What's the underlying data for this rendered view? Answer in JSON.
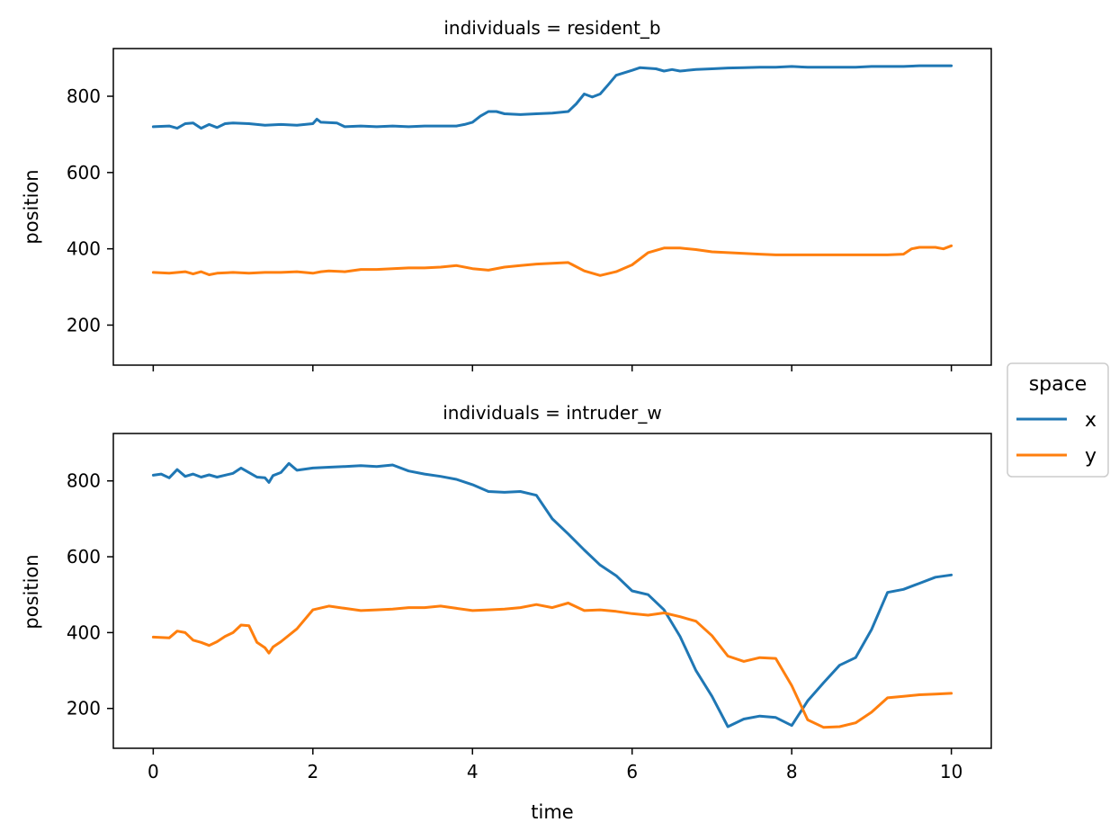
{
  "chart_data": {
    "type": "line",
    "xlabel": "time",
    "ylabel": "position",
    "xlim": [
      -0.5,
      10.5
    ],
    "ylim": [
      95,
      925
    ],
    "xticks": [
      0,
      2,
      4,
      6,
      8,
      10
    ],
    "yticks": [
      200,
      400,
      600,
      800
    ],
    "grid": false,
    "sharex": true,
    "legend": {
      "title": "space",
      "placement": "right-center-outside",
      "entries": [
        {
          "name": "x",
          "color": "#1f77b4"
        },
        {
          "name": "y",
          "color": "#ff7f0e"
        }
      ]
    },
    "panels": [
      {
        "title": "individuals = resident_b",
        "series": [
          {
            "name": "x",
            "color": "#1f77b4",
            "points": [
              [
                0,
                720
              ],
              [
                0.2,
                722
              ],
              [
                0.3,
                716
              ],
              [
                0.4,
                728
              ],
              [
                0.5,
                730
              ],
              [
                0.6,
                716
              ],
              [
                0.7,
                726
              ],
              [
                0.8,
                718
              ],
              [
                0.9,
                728
              ],
              [
                1.0,
                730
              ],
              [
                1.2,
                728
              ],
              [
                1.4,
                724
              ],
              [
                1.6,
                726
              ],
              [
                1.8,
                724
              ],
              [
                2.0,
                728
              ],
              [
                2.05,
                740
              ],
              [
                2.1,
                732
              ],
              [
                2.3,
                730
              ],
              [
                2.4,
                720
              ],
              [
                2.6,
                722
              ],
              [
                2.8,
                720
              ],
              [
                3.0,
                722
              ],
              [
                3.2,
                720
              ],
              [
                3.4,
                722
              ],
              [
                3.6,
                722
              ],
              [
                3.8,
                722
              ],
              [
                3.9,
                726
              ],
              [
                4.0,
                732
              ],
              [
                4.1,
                748
              ],
              [
                4.2,
                760
              ],
              [
                4.3,
                760
              ],
              [
                4.4,
                754
              ],
              [
                4.6,
                752
              ],
              [
                4.8,
                754
              ],
              [
                5.0,
                756
              ],
              [
                5.2,
                760
              ],
              [
                5.3,
                780
              ],
              [
                5.4,
                806
              ],
              [
                5.5,
                798
              ],
              [
                5.6,
                806
              ],
              [
                5.7,
                830
              ],
              [
                5.8,
                855
              ],
              [
                6.0,
                868
              ],
              [
                6.1,
                875
              ],
              [
                6.3,
                872
              ],
              [
                6.4,
                866
              ],
              [
                6.5,
                870
              ],
              [
                6.6,
                866
              ],
              [
                6.8,
                870
              ],
              [
                7.0,
                872
              ],
              [
                7.2,
                874
              ],
              [
                7.4,
                875
              ],
              [
                7.6,
                876
              ],
              [
                7.8,
                876
              ],
              [
                8.0,
                878
              ],
              [
                8.2,
                876
              ],
              [
                8.4,
                876
              ],
              [
                8.6,
                876
              ],
              [
                8.8,
                876
              ],
              [
                9.0,
                878
              ],
              [
                9.2,
                878
              ],
              [
                9.4,
                878
              ],
              [
                9.6,
                880
              ],
              [
                9.8,
                880
              ],
              [
                10.0,
                880
              ]
            ]
          },
          {
            "name": "y",
            "color": "#ff7f0e",
            "points": [
              [
                0,
                338
              ],
              [
                0.2,
                336
              ],
              [
                0.4,
                340
              ],
              [
                0.5,
                334
              ],
              [
                0.6,
                340
              ],
              [
                0.7,
                332
              ],
              [
                0.8,
                336
              ],
              [
                1.0,
                338
              ],
              [
                1.2,
                336
              ],
              [
                1.4,
                338
              ],
              [
                1.6,
                338
              ],
              [
                1.8,
                340
              ],
              [
                2.0,
                336
              ],
              [
                2.1,
                340
              ],
              [
                2.2,
                342
              ],
              [
                2.4,
                340
              ],
              [
                2.6,
                346
              ],
              [
                2.8,
                346
              ],
              [
                3.0,
                348
              ],
              [
                3.2,
                350
              ],
              [
                3.4,
                350
              ],
              [
                3.6,
                352
              ],
              [
                3.8,
                356
              ],
              [
                4.0,
                348
              ],
              [
                4.2,
                344
              ],
              [
                4.4,
                352
              ],
              [
                4.6,
                356
              ],
              [
                4.8,
                360
              ],
              [
                5.0,
                362
              ],
              [
                5.2,
                364
              ],
              [
                5.4,
                342
              ],
              [
                5.6,
                330
              ],
              [
                5.8,
                340
              ],
              [
                6.0,
                358
              ],
              [
                6.2,
                390
              ],
              [
                6.4,
                402
              ],
              [
                6.6,
                402
              ],
              [
                6.8,
                398
              ],
              [
                7.0,
                392
              ],
              [
                7.2,
                390
              ],
              [
                7.4,
                388
              ],
              [
                7.6,
                386
              ],
              [
                7.8,
                384
              ],
              [
                8.0,
                384
              ],
              [
                8.2,
                384
              ],
              [
                8.4,
                384
              ],
              [
                8.6,
                384
              ],
              [
                8.8,
                384
              ],
              [
                9.0,
                384
              ],
              [
                9.2,
                384
              ],
              [
                9.4,
                386
              ],
              [
                9.5,
                400
              ],
              [
                9.6,
                404
              ],
              [
                9.8,
                404
              ],
              [
                9.9,
                400
              ],
              [
                10.0,
                408
              ]
            ]
          }
        ]
      },
      {
        "title": "individuals = intruder_w",
        "series": [
          {
            "name": "x",
            "color": "#1f77b4",
            "points": [
              [
                0,
                815
              ],
              [
                0.1,
                818
              ],
              [
                0.2,
                808
              ],
              [
                0.3,
                830
              ],
              [
                0.4,
                812
              ],
              [
                0.5,
                818
              ],
              [
                0.6,
                810
              ],
              [
                0.7,
                816
              ],
              [
                0.8,
                810
              ],
              [
                1.0,
                820
              ],
              [
                1.1,
                834
              ],
              [
                1.2,
                822
              ],
              [
                1.3,
                810
              ],
              [
                1.4,
                808
              ],
              [
                1.45,
                796
              ],
              [
                1.5,
                814
              ],
              [
                1.6,
                822
              ],
              [
                1.7,
                846
              ],
              [
                1.8,
                828
              ],
              [
                2.0,
                834
              ],
              [
                2.2,
                836
              ],
              [
                2.4,
                838
              ],
              [
                2.6,
                840
              ],
              [
                2.8,
                838
              ],
              [
                3.0,
                842
              ],
              [
                3.2,
                826
              ],
              [
                3.4,
                818
              ],
              [
                3.6,
                812
              ],
              [
                3.8,
                804
              ],
              [
                4.0,
                790
              ],
              [
                4.2,
                772
              ],
              [
                4.4,
                770
              ],
              [
                4.6,
                772
              ],
              [
                4.8,
                762
              ],
              [
                5.0,
                700
              ],
              [
                5.2,
                660
              ],
              [
                5.4,
                618
              ],
              [
                5.6,
                578
              ],
              [
                5.8,
                550
              ],
              [
                6.0,
                510
              ],
              [
                6.2,
                500
              ],
              [
                6.4,
                460
              ],
              [
                6.6,
                390
              ],
              [
                6.8,
                300
              ],
              [
                7.0,
                232
              ],
              [
                7.2,
                152
              ],
              [
                7.4,
                172
              ],
              [
                7.6,
                180
              ],
              [
                7.8,
                176
              ],
              [
                8.0,
                155
              ],
              [
                8.2,
                220
              ],
              [
                8.4,
                268
              ],
              [
                8.6,
                314
              ],
              [
                8.8,
                334
              ],
              [
                9.0,
                408
              ],
              [
                9.2,
                506
              ],
              [
                9.4,
                514
              ],
              [
                9.6,
                530
              ],
              [
                9.8,
                546
              ],
              [
                10.0,
                552
              ]
            ]
          },
          {
            "name": "y",
            "color": "#ff7f0e",
            "points": [
              [
                0,
                388
              ],
              [
                0.2,
                386
              ],
              [
                0.3,
                404
              ],
              [
                0.4,
                400
              ],
              [
                0.5,
                380
              ],
              [
                0.6,
                374
              ],
              [
                0.7,
                366
              ],
              [
                0.8,
                376
              ],
              [
                0.9,
                390
              ],
              [
                1.0,
                400
              ],
              [
                1.1,
                420
              ],
              [
                1.2,
                418
              ],
              [
                1.3,
                374
              ],
              [
                1.4,
                360
              ],
              [
                1.45,
                346
              ],
              [
                1.5,
                362
              ],
              [
                1.6,
                376
              ],
              [
                1.8,
                410
              ],
              [
                2.0,
                460
              ],
              [
                2.2,
                470
              ],
              [
                2.4,
                464
              ],
              [
                2.6,
                458
              ],
              [
                2.8,
                460
              ],
              [
                3.0,
                462
              ],
              [
                3.2,
                466
              ],
              [
                3.4,
                466
              ],
              [
                3.6,
                470
              ],
              [
                3.8,
                464
              ],
              [
                4.0,
                458
              ],
              [
                4.2,
                460
              ],
              [
                4.4,
                462
              ],
              [
                4.6,
                466
              ],
              [
                4.8,
                474
              ],
              [
                5.0,
                466
              ],
              [
                5.2,
                478
              ],
              [
                5.4,
                458
              ],
              [
                5.6,
                460
              ],
              [
                5.8,
                456
              ],
              [
                6.0,
                450
              ],
              [
                6.2,
                446
              ],
              [
                6.4,
                452
              ],
              [
                6.6,
                442
              ],
              [
                6.8,
                430
              ],
              [
                7.0,
                392
              ],
              [
                7.2,
                338
              ],
              [
                7.4,
                324
              ],
              [
                7.6,
                334
              ],
              [
                7.8,
                332
              ],
              [
                8.0,
                260
              ],
              [
                8.2,
                170
              ],
              [
                8.4,
                150
              ],
              [
                8.6,
                152
              ],
              [
                8.8,
                162
              ],
              [
                9.0,
                190
              ],
              [
                9.2,
                228
              ],
              [
                9.4,
                232
              ],
              [
                9.6,
                236
              ],
              [
                9.8,
                238
              ],
              [
                10.0,
                240
              ]
            ]
          }
        ]
      }
    ]
  }
}
